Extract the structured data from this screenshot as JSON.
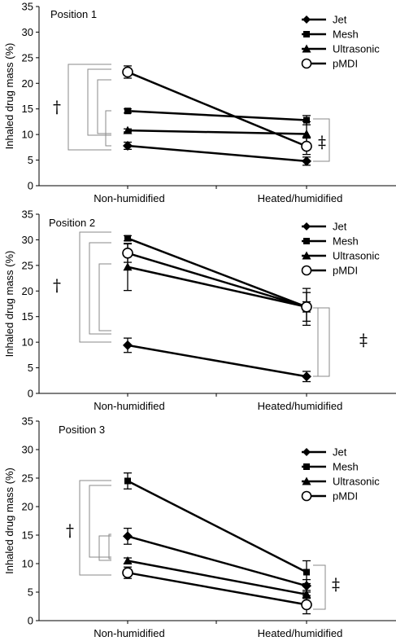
{
  "figure": {
    "ylabel": "Inhaled drug mass (%)",
    "categories": [
      "Non-humidified",
      "Heated/humidified"
    ],
    "dagger": "†",
    "double_dagger": "‡"
  },
  "chart_data": [
    {
      "type": "line",
      "title": "Position 1",
      "ylabel": "Inhaled drug mass (%)",
      "ylim": [
        0,
        35
      ],
      "yticks": [
        0,
        5,
        10,
        15,
        20,
        25,
        30,
        35
      ],
      "categories": [
        "Non-humidified",
        "Heated/humidified"
      ],
      "legend_position": "top-right",
      "series": [
        {
          "name": "Jet",
          "marker": "diamond",
          "values": [
            7.8,
            4.8
          ],
          "errors": [
            0.7,
            0.8
          ]
        },
        {
          "name": "Mesh",
          "marker": "square",
          "values": [
            14.6,
            12.8
          ],
          "errors": [
            0.4,
            0.9
          ]
        },
        {
          "name": "Ultrasonic",
          "marker": "triangle",
          "values": [
            10.8,
            10.1
          ],
          "errors": [
            0.3,
            2.4
          ]
        },
        {
          "name": "pMDI",
          "marker": "circle",
          "values": [
            22.2,
            7.7
          ],
          "errors": [
            1.2,
            1.6
          ]
        }
      ]
    },
    {
      "type": "line",
      "title": "Position 2",
      "ylabel": "Inhaled drug mass (%)",
      "ylim": [
        0,
        35
      ],
      "yticks": [
        0,
        5,
        10,
        15,
        20,
        25,
        30,
        35
      ],
      "categories": [
        "Non-humidified",
        "Heated/humidified"
      ],
      "legend_position": "top-right",
      "series": [
        {
          "name": "Jet",
          "marker": "diamond",
          "values": [
            9.4,
            3.3
          ],
          "errors": [
            1.4,
            1.0
          ]
        },
        {
          "name": "Mesh",
          "marker": "square",
          "values": [
            30.3,
            16.9
          ],
          "errors": [
            0.5,
            1.0
          ]
        },
        {
          "name": "Ultrasonic",
          "marker": "triangle",
          "values": [
            24.7,
            16.9
          ],
          "errors": [
            4.6,
            2.8
          ]
        },
        {
          "name": "pMDI",
          "marker": "circle",
          "values": [
            27.4,
            16.9
          ],
          "errors": [
            1.8,
            3.6
          ]
        }
      ]
    },
    {
      "type": "line",
      "title": "Position 3",
      "ylabel": "Inhaled drug mass (%)",
      "ylim": [
        0,
        35
      ],
      "yticks": [
        0,
        5,
        10,
        15,
        20,
        25,
        30,
        35
      ],
      "categories": [
        "Non-humidified",
        "Heated/humidified"
      ],
      "legend_position": "right",
      "series": [
        {
          "name": "Jet",
          "marker": "diamond",
          "values": [
            14.8,
            6.1
          ],
          "errors": [
            1.4,
            1.1
          ]
        },
        {
          "name": "Mesh",
          "marker": "square",
          "values": [
            24.5,
            8.5
          ],
          "errors": [
            1.4,
            2.0
          ]
        },
        {
          "name": "Ultrasonic",
          "marker": "triangle",
          "values": [
            10.5,
            4.6
          ],
          "errors": [
            0.5,
            0.7
          ]
        },
        {
          "name": "pMDI",
          "marker": "circle",
          "values": [
            8.4,
            2.8
          ],
          "errors": [
            1.0,
            1.6
          ]
        }
      ]
    }
  ]
}
